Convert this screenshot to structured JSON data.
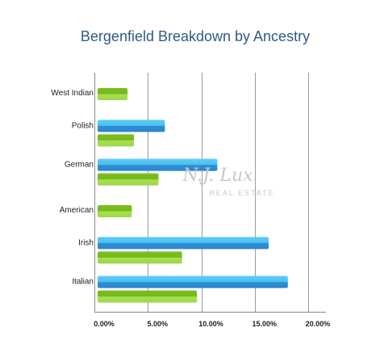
{
  "chart_data": {
    "type": "bar",
    "orientation": "horizontal",
    "title": "Bergenfield Breakdown by Ancestry",
    "categories": [
      "West Indian",
      "Polish",
      "German",
      "American",
      "Irish",
      "Italian"
    ],
    "series": [
      {
        "color_top": "#5ccdf5",
        "color_bottom": "#2e8fd6",
        "values": [
          null,
          6.6,
          11.5,
          null,
          16.3,
          18.1
        ]
      },
      {
        "color_top": "#a3dc4c",
        "color_bottom": "#6fb319",
        "values": [
          3.1,
          3.7,
          6.0,
          3.5,
          8.2,
          9.6
        ]
      }
    ],
    "xlim": [
      0,
      20
    ],
    "x_ticks": [
      "0.00%",
      "5.00%",
      "10.00%",
      "15.00%",
      "20.00%"
    ],
    "grid": "vertical",
    "legend": "none",
    "watermark": {
      "line1": "N.J. Lux",
      "line2": "REAL ESTATE"
    }
  }
}
